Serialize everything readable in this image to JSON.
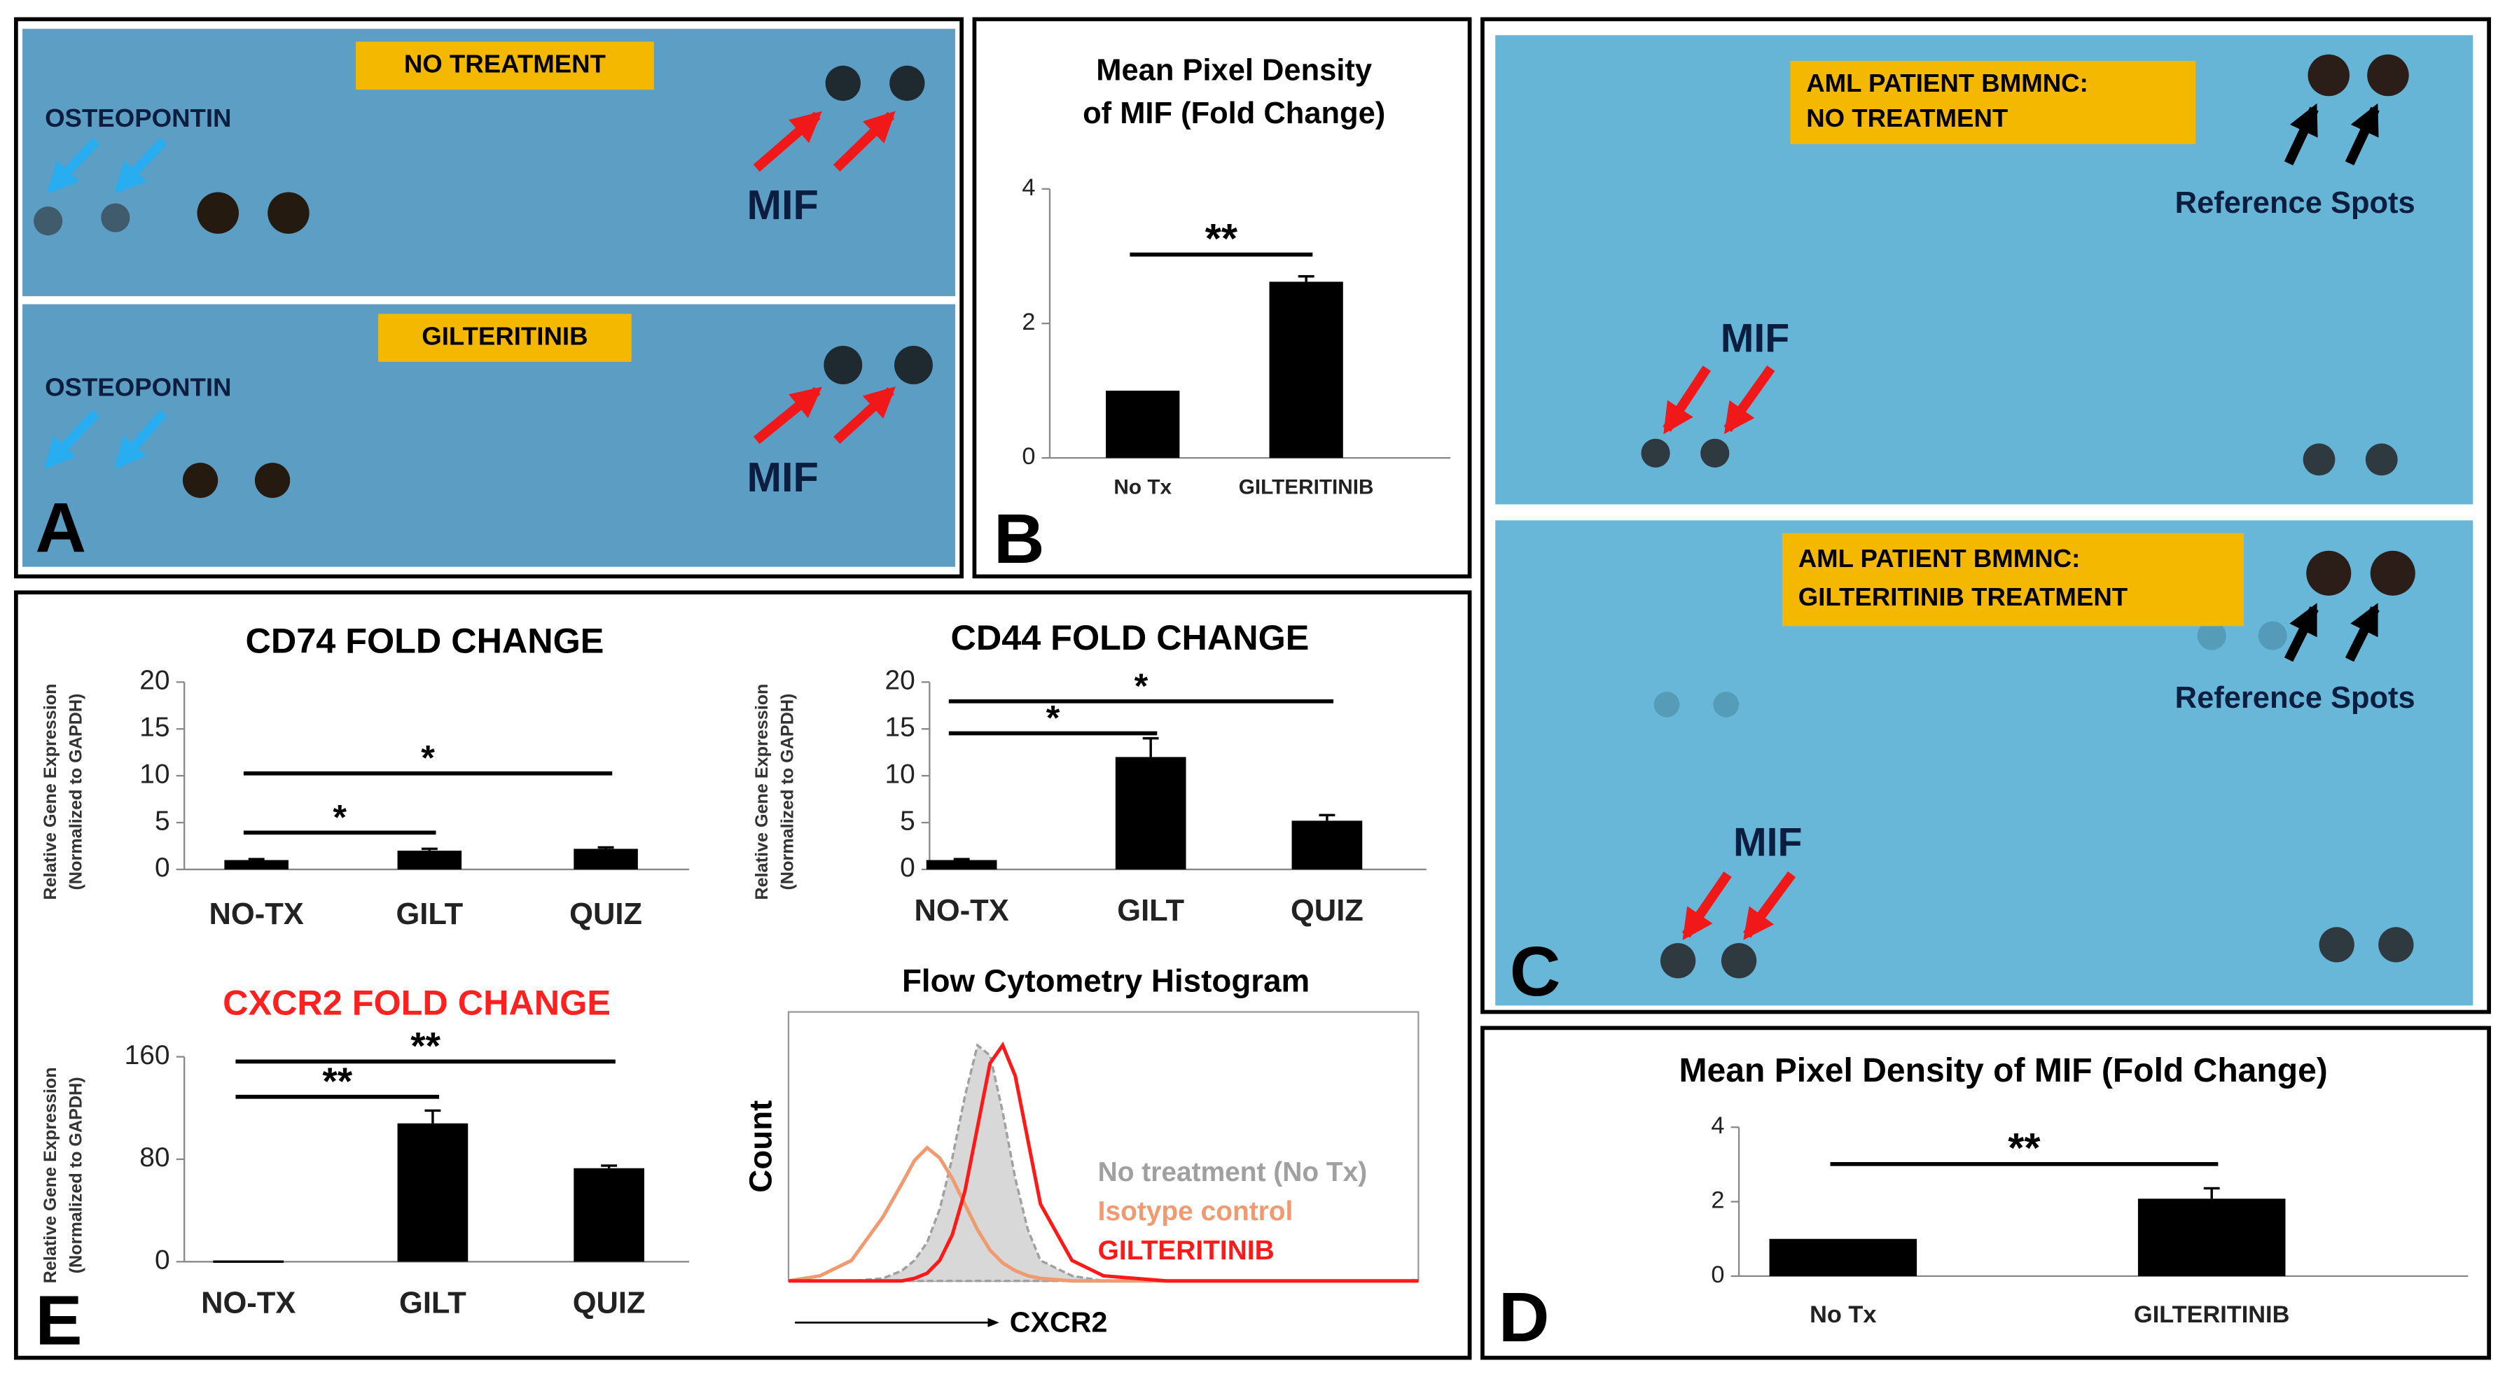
{
  "panels": {
    "A": {
      "letter": "A",
      "top_label": "NO TREATMENT",
      "bottom_label": "GILTERITINIB",
      "marker": "OSTEOPONTIN",
      "target": "MIF"
    },
    "B": {
      "letter": "B"
    },
    "C": {
      "letter": "C",
      "top_label": [
        "AML PATIENT BMMNC:",
        "NO TREATMENT"
      ],
      "bottom_label": [
        "AML PATIENT BMMNC:",
        "GILTERITINIB TREATMENT"
      ],
      "reference": "Reference Spots",
      "target": "MIF"
    },
    "D": {
      "letter": "D"
    },
    "E": {
      "letter": "E"
    }
  },
  "chart_data": [
    {
      "type": "bar",
      "title": [
        "Mean Pixel Density",
        "of MIF (Fold Change)"
      ],
      "categories": [
        "No Tx",
        "GILTERITINIB"
      ],
      "values": [
        1,
        2.62
      ],
      "errors": [
        0,
        0.08
      ],
      "color": "#000000",
      "ylim": [
        0,
        4
      ],
      "yticks": [
        0,
        2,
        4
      ],
      "significance": [
        {
          "from": 0,
          "to": 1,
          "label": "**"
        }
      ]
    },
    {
      "type": "bar",
      "title": "Mean Pixel Density of MIF (Fold Change)",
      "categories": [
        "No Tx",
        "GILTERITINIB"
      ],
      "values": [
        1,
        2.08
      ],
      "errors": [
        0,
        0.28
      ],
      "color": "#000000",
      "ylim": [
        0,
        4
      ],
      "yticks": [
        0,
        2,
        4
      ],
      "significance": [
        {
          "from": 0,
          "to": 1,
          "label": "**"
        }
      ]
    },
    {
      "type": "bar",
      "title": "CD74 FOLD CHANGE",
      "y_label": [
        "Relative Gene Expression",
        "(Normalized to GAPDH)"
      ],
      "categories": [
        "NO-TX",
        "GILT",
        "QUIZ"
      ],
      "values": [
        1,
        2,
        2.2
      ],
      "errors": [
        0.1,
        0.2,
        0.15
      ],
      "color": "#000000",
      "ylim": [
        0,
        20
      ],
      "yticks": [
        0,
        5,
        10,
        15,
        20
      ],
      "significance": [
        {
          "from": 0,
          "to": 2,
          "label": "*"
        },
        {
          "from": 0,
          "to": 1,
          "label": "*"
        }
      ]
    },
    {
      "type": "bar",
      "title": "CD44 FOLD CHANGE",
      "y_label": [
        "Relative Gene Expression",
        "(Normalized to GAPDH)"
      ],
      "categories": [
        "NO-TX",
        "GILT",
        "QUIZ"
      ],
      "values": [
        1,
        12,
        5.2
      ],
      "errors": [
        0.1,
        2,
        0.6
      ],
      "color": "#000000",
      "ylim": [
        0,
        20
      ],
      "yticks": [
        0,
        5,
        10,
        15,
        20
      ],
      "significance": [
        {
          "from": 0,
          "to": 2,
          "label": "*"
        },
        {
          "from": 0,
          "to": 1,
          "label": "*"
        }
      ]
    },
    {
      "type": "bar",
      "title": "CXCR2 FOLD CHANGE",
      "title_color": "#ff2020",
      "y_label": [
        "Relative Gene Expression",
        "(Normalized to GAPDH)"
      ],
      "categories": [
        "NO-TX",
        "GILT",
        "QUIZ"
      ],
      "values": [
        1,
        108,
        73
      ],
      "errors": [
        0,
        10,
        2
      ],
      "color": "#000000",
      "ylim": [
        0,
        160
      ],
      "yticks": [
        0,
        80,
        160
      ],
      "significance": [
        {
          "from": 0,
          "to": 2,
          "label": "**"
        },
        {
          "from": 0,
          "to": 1,
          "label": "**"
        }
      ]
    },
    {
      "type": "line",
      "title": "Flow Cytometry Histogram",
      "y_label": "Count",
      "x_label": "CXCR2",
      "xlim": [
        0,
        100
      ],
      "ylim": [
        0,
        100
      ],
      "x": [
        0,
        5,
        10,
        15,
        18,
        20,
        22,
        24,
        26,
        28,
        30,
        32,
        34,
        36,
        38,
        40,
        45,
        50,
        60,
        80,
        100
      ],
      "series": [
        {
          "name": "No treatment (No Tx)",
          "color": "#a0a0a0",
          "filled": true,
          "values": [
            0,
            0,
            0,
            1,
            4,
            8,
            15,
            28,
            48,
            72,
            92,
            88,
            66,
            40,
            20,
            8,
            2,
            0,
            0,
            0,
            0
          ]
        },
        {
          "name": "Isotype control",
          "color": "#f09a70",
          "filled": false,
          "values": [
            0,
            2,
            8,
            25,
            38,
            47,
            52,
            48,
            40,
            30,
            20,
            12,
            7,
            4,
            2,
            1,
            0,
            0,
            0,
            0,
            0
          ]
        },
        {
          "name": "GILTERITINIB",
          "color": "#ff1a1a",
          "filled": false,
          "values": [
            0,
            0,
            0,
            0,
            0,
            1,
            3,
            8,
            18,
            35,
            60,
            85,
            92,
            80,
            55,
            30,
            8,
            2,
            0,
            0,
            0
          ]
        }
      ]
    }
  ]
}
